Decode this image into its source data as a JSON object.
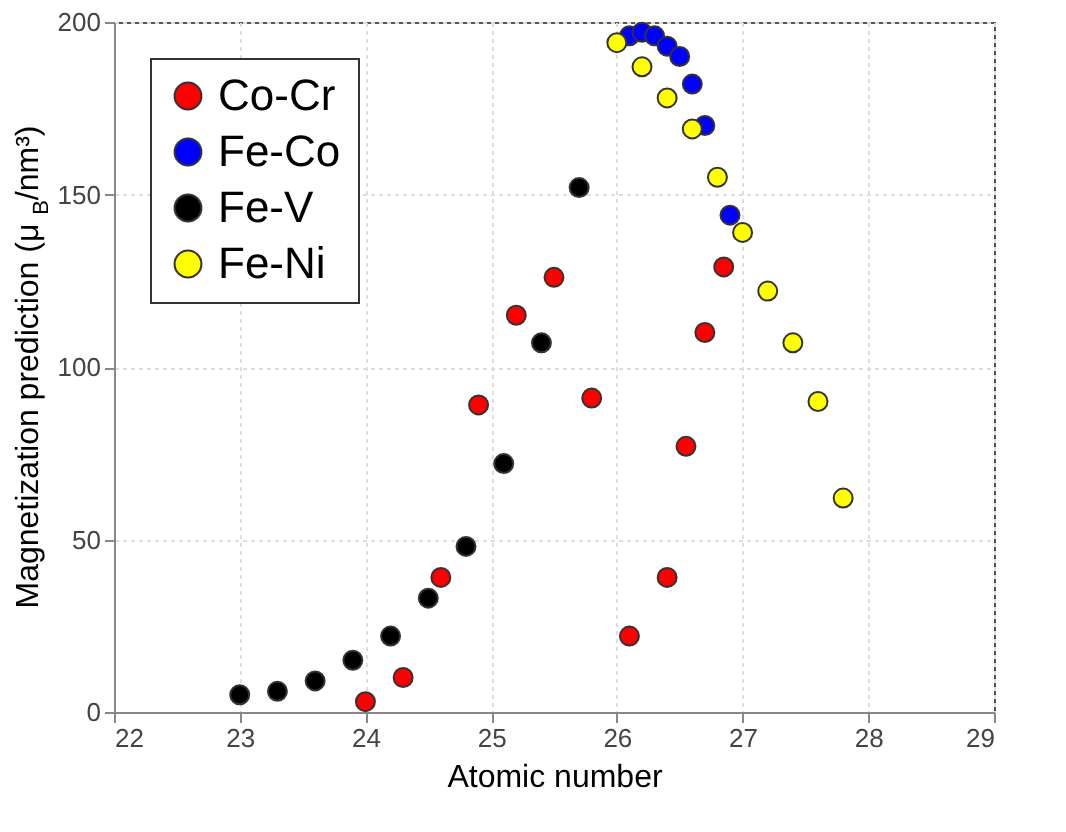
{
  "chart_data": {
    "type": "scatter",
    "xlabel": "Atomic number",
    "ylabel": "Magnetization prediction  (μ$_{B}$/nm³)",
    "xlim": [
      22,
      29
    ],
    "xticks": [
      22,
      23,
      24,
      25,
      26,
      27,
      28,
      29
    ],
    "ylim": [
      0,
      200
    ],
    "yticks": [
      0,
      50,
      100,
      150,
      200
    ],
    "grid": true,
    "legend": "top left",
    "marker": "circle",
    "series": [
      {
        "name": "Co-Cr",
        "color": "#ff0000",
        "x": [
          24.0,
          24.3,
          24.6,
          24.9,
          25.2,
          25.5,
          25.8,
          26.1,
          26.4,
          26.55,
          26.7,
          26.85
        ],
        "values": [
          3,
          10,
          39,
          89,
          115,
          126,
          91,
          22,
          39,
          77,
          110,
          129
        ]
      },
      {
        "name": "Fe-Co",
        "color": "#0000ff",
        "x": [
          26.1,
          26.2,
          26.3,
          26.4,
          26.5,
          26.6,
          26.7,
          26.9
        ],
        "values": [
          196,
          197,
          196,
          193,
          190,
          182,
          170,
          144
        ]
      },
      {
        "name": "Fe-V",
        "color": "#000000",
        "x": [
          23.0,
          23.3,
          23.6,
          23.9,
          24.2,
          24.5,
          24.8,
          25.1,
          25.4,
          25.7
        ],
        "values": [
          5,
          6,
          9,
          15,
          22,
          33,
          48,
          72,
          107,
          152
        ]
      },
      {
        "name": "Fe-Ni",
        "color": "#ffff00",
        "x": [
          26.0,
          26.2,
          26.4,
          26.6,
          26.8,
          27.0,
          27.2,
          27.4,
          27.6,
          27.8
        ],
        "values": [
          194,
          187,
          178,
          169,
          155,
          139,
          122,
          107,
          90,
          62
        ]
      }
    ]
  }
}
